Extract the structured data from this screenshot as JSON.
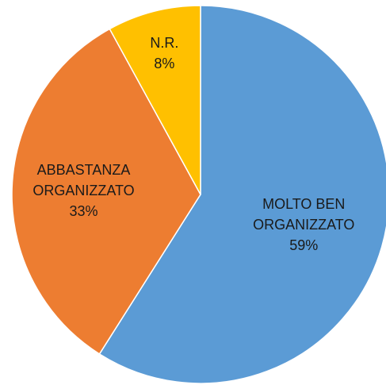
{
  "chart_data": {
    "type": "pie",
    "categories": [
      "MOLTO BEN ORGANIZZATO",
      "ABBASTANZA ORGANIZZATO",
      "N.R."
    ],
    "values": [
      59,
      33,
      8
    ],
    "value_labels": [
      "59%",
      "33%",
      "8%"
    ],
    "colors": [
      "#5b9bd5",
      "#ed7d31",
      "#ffc000"
    ]
  }
}
